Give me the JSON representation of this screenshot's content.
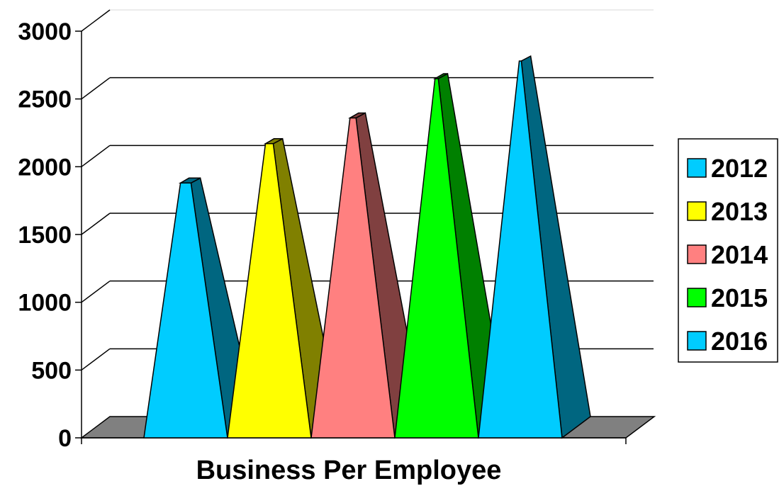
{
  "chart_data": {
    "type": "bar",
    "style": "3d-pyramid",
    "categories": [
      "2012",
      "2013",
      "2014",
      "2015",
      "2016"
    ],
    "values": [
      1880,
      2170,
      2360,
      2650,
      2780
    ],
    "colors": [
      "#00CCFF",
      "#FFFF00",
      "#FF8080",
      "#00FF00",
      "#00CCFF"
    ],
    "side_colors": [
      "#006680",
      "#808000",
      "#804040",
      "#008000",
      "#006680"
    ],
    "xlabel": "Business Per Employee",
    "ylabel": "",
    "ylim": [
      0,
      3000
    ],
    "yticks": [
      "0",
      "500",
      "1000",
      "1500",
      "2000",
      "2500",
      "3000"
    ],
    "grid": true,
    "legend": {
      "position": "right",
      "entries": [
        "2012",
        "2013",
        "2014",
        "2015",
        "2016"
      ]
    }
  }
}
